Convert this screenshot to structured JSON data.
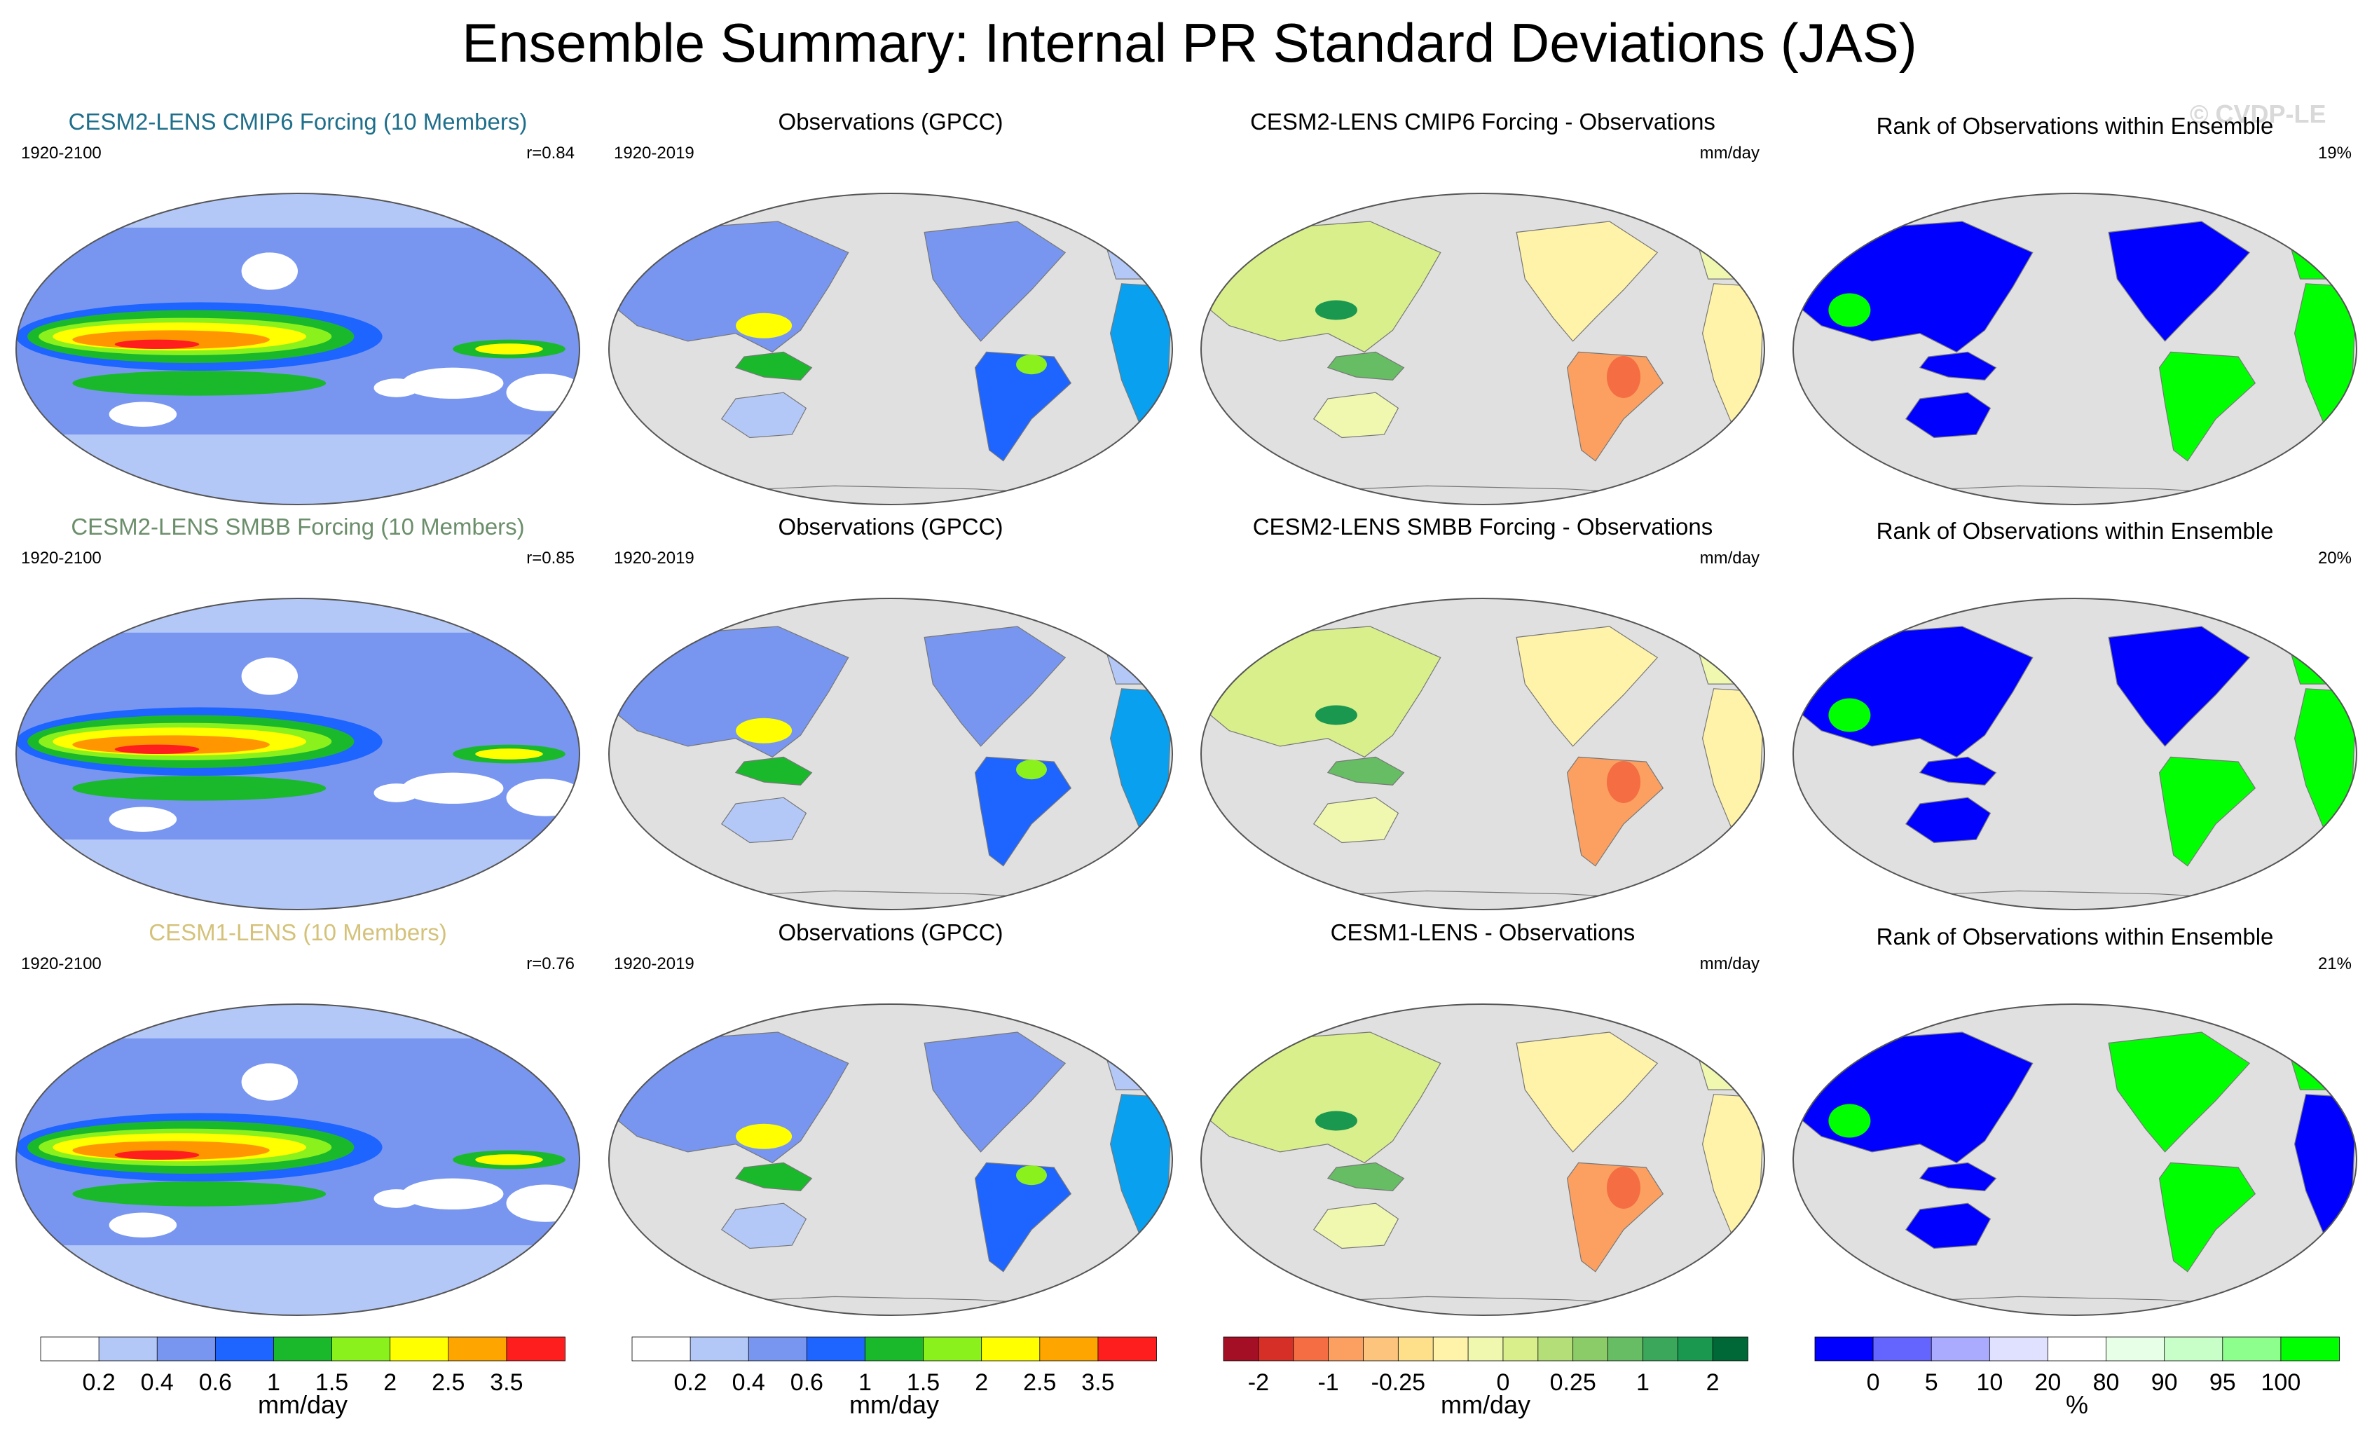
{
  "title": "Ensemble Summary: Internal PR Standard Deviations (JAS)",
  "watermark": "© CVDP-LE",
  "colors": {
    "std": [
      "#ffffff",
      "#b4c8f8",
      "#7896f0",
      "#1e64ff",
      "#0aa0f0",
      "#1ab92c",
      "#8bf11d",
      "#ffff00",
      "#ffc800",
      "#ff9600",
      "#ff1e1e"
    ],
    "std_bar": [
      "#ffffff",
      "#b4c8f8",
      "#7896f0",
      "#1e64ff",
      "#1ab92c",
      "#8bf11d",
      "#ffff00",
      "#ffa500",
      "#ff1e1e"
    ],
    "diff": [
      "#a50f26",
      "#d62f27",
      "#f46d43",
      "#fca062",
      "#fdc47d",
      "#fee08b",
      "#fff3a9",
      "#f0f8b0",
      "#d9ef8b",
      "#b4df78",
      "#8ccc68",
      "#66bd63",
      "#3aa75a",
      "#1a9850",
      "#006837"
    ],
    "rank": [
      "#0000ff",
      "#6464ff",
      "#aaaaff",
      "#e0e0ff",
      "#ffffff",
      "#e6ffe6",
      "#c8ffc8",
      "#8cff8c",
      "#00ff00"
    ],
    "ocean_grey": "#e0e0e0"
  },
  "rows": [
    {
      "model_title": "CESM2-LENS CMIP6 Forcing (10 Members)",
      "model_title_color": "#1f6f8b",
      "model_period": "1920-2100",
      "model_r": "r=0.84",
      "obs_title": "Observations (GPCC)",
      "obs_period": "1920-2019",
      "diff_title": "CESM2-LENS CMIP6 Forcing - Observations",
      "diff_units": "mm/day",
      "rank_title": "Rank of Observations within Ensemble",
      "rank_pct": "19%"
    },
    {
      "model_title": "CESM2-LENS SMBB Forcing (10 Members)",
      "model_title_color": "#6b8e6b",
      "model_period": "1920-2100",
      "model_r": "r=0.85",
      "obs_title": "Observations (GPCC)",
      "obs_period": "1920-2019",
      "diff_title": "CESM2-LENS SMBB Forcing - Observations",
      "diff_units": "mm/day",
      "rank_title": "Rank of Observations within Ensemble",
      "rank_pct": "20%"
    },
    {
      "model_title": "CESM1-LENS (10 Members)",
      "model_title_color": "#d4c27a",
      "model_period": "1920-2100",
      "model_r": "r=0.76",
      "obs_title": "Observations (GPCC)",
      "obs_period": "1920-2019",
      "diff_title": "CESM1-LENS - Observations",
      "diff_units": "mm/day",
      "rank_title": "Rank of Observations within Ensemble",
      "rank_pct": "21%"
    }
  ],
  "colorbars": [
    {
      "kind": "std_bar",
      "labels": [
        "0.2",
        "0.4",
        "0.6",
        "1",
        "1.5",
        "2",
        "2.5",
        "3.5"
      ],
      "units": "mm/day"
    },
    {
      "kind": "std_bar",
      "labels": [
        "0.2",
        "0.4",
        "0.6",
        "1",
        "1.5",
        "2",
        "2.5",
        "3.5"
      ],
      "units": "mm/day"
    },
    {
      "kind": "diff",
      "labels": [
        "-2",
        "-1",
        "-0.25",
        "0",
        "0.25",
        "1",
        "2"
      ],
      "units": "mm/day"
    },
    {
      "kind": "rank",
      "labels": [
        "0",
        "5",
        "10",
        "20",
        "80",
        "90",
        "95",
        "100"
      ],
      "units": "%"
    }
  ],
  "chart_data": [
    {
      "type": "heatmap",
      "projection": "Robinson (Pacific-centered)",
      "title": "CESM2-LENS CMIP6 Forcing (10 Members)",
      "period": "1920-2100",
      "pattern_correlation": 0.84,
      "units": "mm/day",
      "levels": [
        0.2,
        0.4,
        0.6,
        1,
        1.5,
        2,
        2.5,
        3.5
      ]
    },
    {
      "type": "heatmap",
      "projection": "Robinson (Pacific-centered)",
      "title": "Observations (GPCC)",
      "period": "1920-2019",
      "units": "mm/day",
      "levels": [
        0.2,
        0.4,
        0.6,
        1,
        1.5,
        2,
        2.5,
        3.5
      ]
    },
    {
      "type": "heatmap",
      "projection": "Robinson (Pacific-centered)",
      "title": "CESM2-LENS CMIP6 Forcing - Observations",
      "units": "mm/day",
      "levels": [
        -2,
        -1,
        -0.25,
        0,
        0.25,
        1,
        2
      ]
    },
    {
      "type": "heatmap",
      "projection": "Robinson (Pacific-centered)",
      "title": "Rank of Observations within Ensemble",
      "summary_percent": 19,
      "units": "%",
      "levels": [
        0,
        5,
        10,
        20,
        80,
        90,
        95,
        100
      ]
    },
    {
      "type": "heatmap",
      "projection": "Robinson (Pacific-centered)",
      "title": "CESM2-LENS SMBB Forcing (10 Members)",
      "period": "1920-2100",
      "pattern_correlation": 0.85,
      "units": "mm/day"
    },
    {
      "type": "heatmap",
      "projection": "Robinson (Pacific-centered)",
      "title": "Observations (GPCC)",
      "period": "1920-2019",
      "units": "mm/day"
    },
    {
      "type": "heatmap",
      "projection": "Robinson (Pacific-centered)",
      "title": "CESM2-LENS SMBB Forcing - Observations",
      "units": "mm/day"
    },
    {
      "type": "heatmap",
      "projection": "Robinson (Pacific-centered)",
      "title": "Rank of Observations within Ensemble",
      "summary_percent": 20,
      "units": "%"
    },
    {
      "type": "heatmap",
      "projection": "Robinson (Pacific-centered)",
      "title": "CESM1-LENS (10 Members)",
      "period": "1920-2100",
      "pattern_correlation": 0.76,
      "units": "mm/day"
    },
    {
      "type": "heatmap",
      "projection": "Robinson (Pacific-centered)",
      "title": "Observations (GPCC)",
      "period": "1920-2019",
      "units": "mm/day"
    },
    {
      "type": "heatmap",
      "projection": "Robinson (Pacific-centered)",
      "title": "CESM1-LENS - Observations",
      "units": "mm/day"
    },
    {
      "type": "heatmap",
      "projection": "Robinson (Pacific-centered)",
      "title": "Rank of Observations within Ensemble",
      "summary_percent": 21,
      "units": "%"
    }
  ]
}
